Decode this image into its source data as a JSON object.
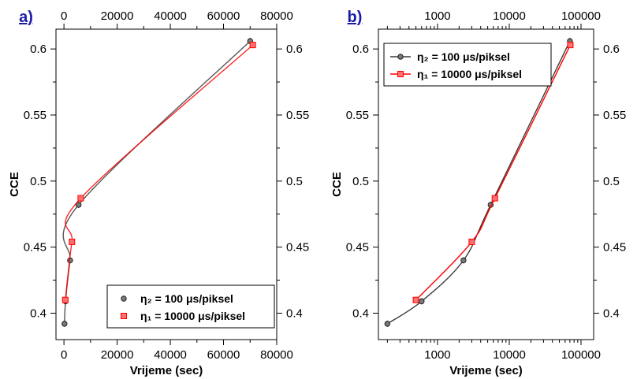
{
  "colors": {
    "series1": "#3a3a3a",
    "series2": "#ff0000",
    "panel_label": "#1a1aa6"
  },
  "chart_data": [
    {
      "type": "scatter",
      "panel_label": "a)",
      "xlabel": "Vrijeme (sec)",
      "ylabel": "CCE",
      "xscale": "linear",
      "xlim": [
        -3000,
        80000
      ],
      "ylim": [
        0.38,
        0.615
      ],
      "xticks": [
        0,
        20000,
        40000,
        60000,
        80000
      ],
      "xtick_labels": [
        "0",
        "20000",
        "40000",
        "60000",
        "80000"
      ],
      "yticks": [
        0.4,
        0.45,
        0.5,
        0.55,
        0.6
      ],
      "ytick_labels": [
        "0.4",
        "0.45",
        "0.5",
        "0.55",
        "0.6"
      ],
      "legend_position": "bottom-right",
      "series": [
        {
          "name": "η₂ = 100 μs/piksel",
          "marker": "circle",
          "color": "#3a3a3a",
          "x": [
            200,
            600,
            2300,
            5500,
            70000
          ],
          "y": [
            0.392,
            0.409,
            0.44,
            0.482,
            0.606
          ]
        },
        {
          "name": "η₁ = 10000 μs/piksel",
          "marker": "square",
          "color": "#ff0000",
          "x": [
            500,
            3000,
            6300,
            71000
          ],
          "y": [
            0.41,
            0.454,
            0.487,
            0.603
          ]
        }
      ]
    },
    {
      "type": "line",
      "panel_label": "b)",
      "xlabel": "Vrijeme (sec)",
      "ylabel": "CCE",
      "xscale": "log",
      "xlim": [
        150,
        150000
      ],
      "ylim": [
        0.38,
        0.615
      ],
      "xticks": [
        1000,
        10000,
        100000
      ],
      "xtick_labels": [
        "1000",
        "10000",
        "100000"
      ],
      "yticks": [
        0.4,
        0.45,
        0.5,
        0.55,
        0.6
      ],
      "ytick_labels": [
        "0.4",
        "0.45",
        "0.5",
        "0.55",
        "0.6"
      ],
      "legend_position": "top-left",
      "series": [
        {
          "name": "η₂ = 100 μs/piksel",
          "marker": "circle",
          "color": "#3a3a3a",
          "x": [
            200,
            600,
            2300,
            5500,
            70000
          ],
          "y": [
            0.392,
            0.409,
            0.44,
            0.482,
            0.606
          ]
        },
        {
          "name": "η₁ = 10000 μs/piksel",
          "marker": "square",
          "color": "#ff0000",
          "x": [
            500,
            3000,
            6300,
            71000
          ],
          "y": [
            0.41,
            0.454,
            0.487,
            0.603
          ]
        }
      ]
    }
  ]
}
